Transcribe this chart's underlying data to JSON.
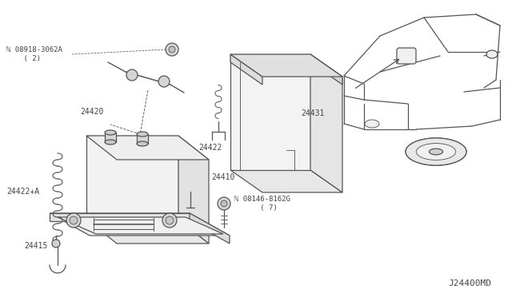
{
  "bg_color": "#ffffff",
  "line_color": "#555555",
  "text_color": "#444444",
  "diagram_id": "J24400MD",
  "parts": [
    {
      "id": "24410",
      "label": "24410"
    },
    {
      "id": "24415",
      "label": "24415"
    },
    {
      "id": "24420",
      "label": "24420"
    },
    {
      "id": "24422",
      "label": "24422"
    },
    {
      "id": "24422A",
      "label": "24422+A"
    },
    {
      "id": "24431",
      "label": "24431"
    },
    {
      "id": "08918-3062A",
      "label": "ℕ 08918-3062A\n    ( 2)"
    },
    {
      "id": "08146-8162G",
      "label": "ℕ 08146-8162G\n      ( 7)"
    }
  ],
  "font_size": 7.0,
  "diagram_font_size": 8.0
}
